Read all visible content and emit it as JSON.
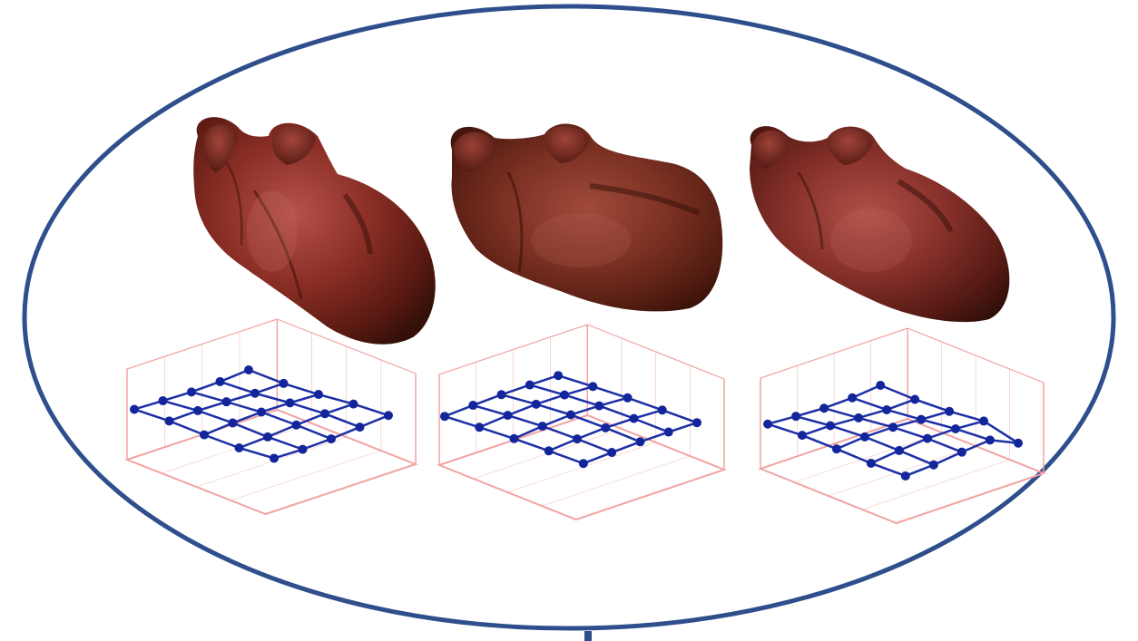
{
  "figure": {
    "colors": {
      "ellipse_stroke": "#2e4f8c",
      "heart_base": "#6e1f16",
      "heart_highlight": "#a5473a",
      "heart_shadow": "#3a0f09",
      "lattice_line": "#1c2fa6",
      "lattice_node": "#13259a",
      "box_line": "#f2a3a3"
    },
    "panels": [
      {
        "heart_icon": "heart-anatomical-view-1",
        "lattice_icon": "control-point-lattice-5x5",
        "lattice_rows": 5,
        "lattice_cols": 5,
        "deformation": "flat"
      },
      {
        "heart_icon": "heart-anatomical-view-2",
        "lattice_icon": "control-point-lattice-5x5",
        "lattice_rows": 5,
        "lattice_cols": 5,
        "deformation": "center-raised"
      },
      {
        "heart_icon": "heart-anatomical-view-3",
        "lattice_icon": "control-point-lattice-5x5",
        "lattice_rows": 5,
        "lattice_cols": 5,
        "deformation": "front-dipped"
      }
    ]
  }
}
